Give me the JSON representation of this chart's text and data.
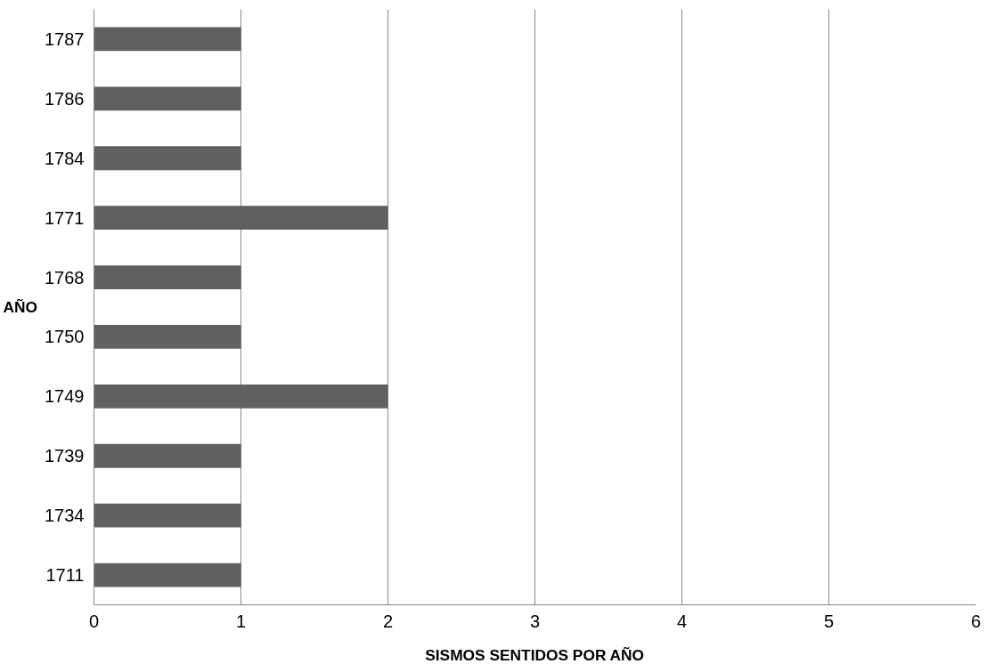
{
  "chart_data": {
    "type": "bar",
    "orientation": "horizontal",
    "xlabel": "SISMOS SENTIDOS POR AÑO",
    "ylabel": "AÑO",
    "categories": [
      "1787",
      "1786",
      "1784",
      "1771",
      "1768",
      "1750",
      "1749",
      "1739",
      "1734",
      "1711"
    ],
    "values": [
      1,
      1,
      1,
      2,
      1,
      1,
      2,
      1,
      1,
      1
    ],
    "color": "#606060",
    "xlim": [
      0,
      6
    ],
    "xticks": [
      0,
      1,
      2,
      3,
      4,
      5,
      6
    ],
    "grid": "x"
  }
}
